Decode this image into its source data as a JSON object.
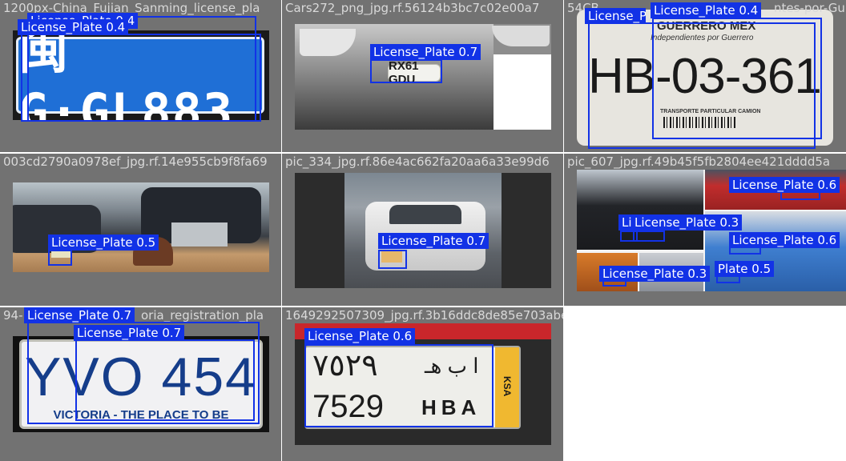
{
  "tiles": [
    {
      "title": "1200px-China_Fujian_Sanming_license_pla",
      "plate_text": "闽G·GL883",
      "detections": [
        {
          "label": "License_Plate 0.4"
        },
        {
          "label": "License_Plate 0.4"
        }
      ]
    },
    {
      "title": "Cars272_png_jpg.rf.56124b3bc7c02e00a7",
      "plate_text": "RX61 GDU",
      "detections": [
        {
          "label": "License_Plate 0.7"
        }
      ]
    },
    {
      "title": "54CB",
      "plate_text": "HB-03-361",
      "plate_header": "GUERRERO MEX",
      "plate_sub": "Independientes por Guerrero",
      "plate_caption": "TRANSPORTE PARTICULAR CAMION",
      "detections": [
        {
          "label": "License_Plate 0.4"
        },
        {
          "label": "License_Plate 0.4"
        }
      ],
      "title_tail": "ntes-por-Gu"
    },
    {
      "title": "003cd2790a0978ef_jpg.rf.14e955cb9f8fa69",
      "detections": [
        {
          "label": "License_Plate 0.5"
        }
      ]
    },
    {
      "title": "pic_334_jpg.rf.86e4ac662fa20aa6a33e99d6",
      "detections": [
        {
          "label": "License_Plate 0.7"
        }
      ]
    },
    {
      "title": "pic_607_jpg.rf.49b45f5fb2804ee421dddd5a",
      "detections": [
        {
          "label": "License_Plate 0.6"
        },
        {
          "label": "License_Plate 0.3"
        },
        {
          "label": "Li"
        },
        {
          "label": "License_Plate 0.6"
        },
        {
          "label": "License_Plate 0.3"
        },
        {
          "label": "Plate 0.5"
        }
      ]
    },
    {
      "title": "94-",
      "title_tail": "oria_registration_pla",
      "plate_text": "YVO 454",
      "plate_caption": "VICTORIA - THE PLACE TO BE",
      "detections": [
        {
          "label": "License_Plate 0.7"
        },
        {
          "label": "License_Plate 0.7"
        }
      ]
    },
    {
      "title": "1649292507309_jpg.rf.3b16ddc8de85e703abe",
      "plate_top_arabic": "٧٥٢٩",
      "plate_top_letters": "ا ب هـ",
      "plate_bottom_digits": "7529",
      "plate_bottom_letters": "HBA",
      "plate_side": "KSA",
      "detections": [
        {
          "label": "License_Plate 0.6"
        }
      ]
    }
  ]
}
